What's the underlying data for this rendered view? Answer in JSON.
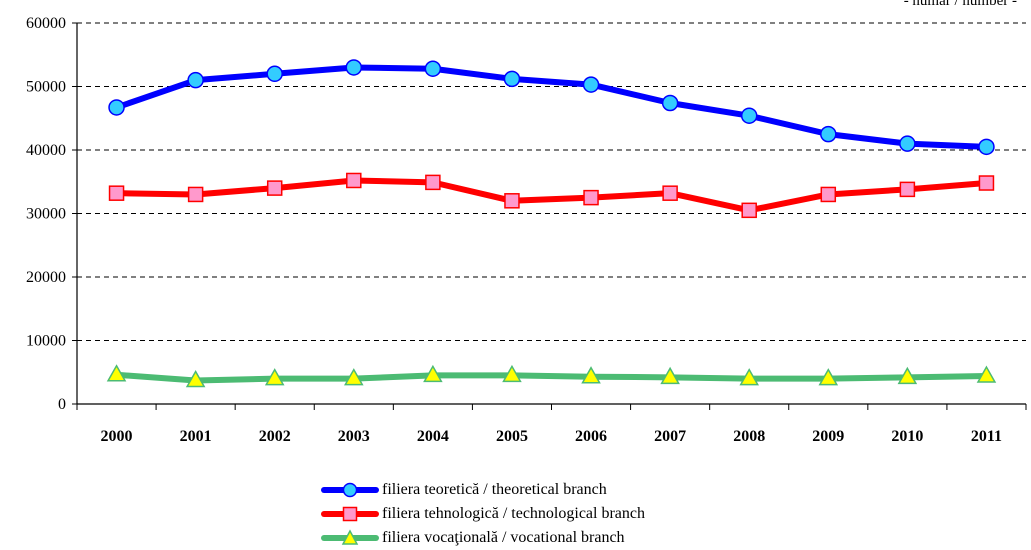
{
  "unit_note": "- număr / number -",
  "chart_data": {
    "type": "line",
    "title": "",
    "xlabel": "",
    "ylabel": "",
    "ylim": [
      0,
      60000
    ],
    "yticks": [
      0,
      10000,
      20000,
      30000,
      40000,
      50000,
      60000
    ],
    "grid": "horizontal-dashed",
    "legend_position": "bottom",
    "categories": [
      "2000",
      "2001",
      "2002",
      "2003",
      "2004",
      "2005",
      "2006",
      "2007",
      "2008",
      "2009",
      "2010",
      "2011"
    ],
    "series": [
      {
        "name": "filiera teoretică / theoretical branch",
        "color": "#0000ff",
        "marker": "circle",
        "marker_fill": "#33ccff",
        "values": [
          46700,
          51000,
          52000,
          53000,
          52800,
          51200,
          50300,
          47400,
          45400,
          42500,
          41000,
          40500
        ]
      },
      {
        "name": "filiera tehnologică / technological branch",
        "color": "#ff0000",
        "marker": "square",
        "marker_fill": "#ff99cc",
        "values": [
          33200,
          33000,
          34000,
          35200,
          34900,
          32000,
          32500,
          33200,
          30500,
          33000,
          33800,
          34800
        ]
      },
      {
        "name": "filiera vocaţională / vocational branch",
        "color": "#4cbb73",
        "marker": "triangle",
        "marker_fill": "#ffff00",
        "values": [
          4600,
          3700,
          4000,
          4000,
          4500,
          4500,
          4300,
          4200,
          4000,
          4000,
          4200,
          4400
        ]
      }
    ]
  }
}
